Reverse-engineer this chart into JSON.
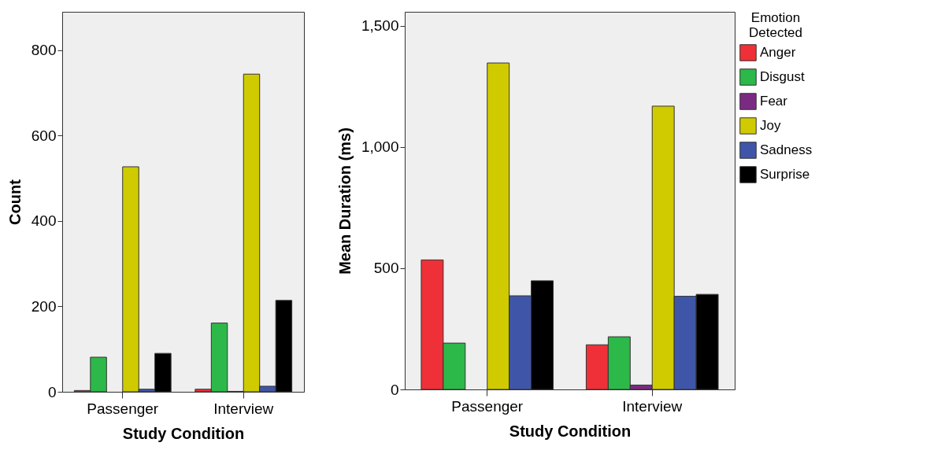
{
  "chart_data": [
    {
      "type": "bar",
      "xlabel": "Study Condition",
      "ylabel": "Count",
      "categories": [
        "Passenger",
        "Interview"
      ],
      "ylim": [
        0,
        890
      ],
      "yticks": [
        0,
        200,
        400,
        600,
        800
      ],
      "grid": false,
      "legend": false,
      "series": [
        {
          "color": "#ef3038",
          "values": [
            3,
            6
          ]
        },
        {
          "color": "#2db84a",
          "values": [
            81,
            161
          ]
        },
        {
          "color": "#7b2a84",
          "values": [
            null,
            1
          ]
        },
        {
          "color": "#cfcb00",
          "values": [
            527,
            744
          ]
        },
        {
          "color": "#3f56a8",
          "values": [
            6,
            13
          ]
        },
        {
          "color": "#000000",
          "values": [
            90,
            214
          ]
        }
      ]
    },
    {
      "type": "bar",
      "xlabel": "Study Condition",
      "ylabel": "Mean Duration (ms)",
      "legend_title": "Emotion Detected",
      "legend": "top right",
      "categories": [
        "Passenger",
        "Interview"
      ],
      "ylim": [
        0,
        1557
      ],
      "yticks": [
        0,
        {
          "value": 500,
          "label": "500"
        },
        {
          "value": 1000,
          "label": "1,000"
        },
        {
          "value": 1500,
          "label": "1,500"
        }
      ],
      "grid": false,
      "series": [
        {
          "name": "Anger",
          "color": "#ef3038",
          "values": [
            534,
            184
          ]
        },
        {
          "name": "Disgust",
          "color": "#2db84a",
          "values": [
            191,
            217
          ]
        },
        {
          "name": "Fear",
          "color": "#7b2a84",
          "values": [
            null,
            18
          ]
        },
        {
          "name": "Joy",
          "color": "#cfcb00",
          "values": [
            1346,
            1168
          ]
        },
        {
          "name": "Sadness",
          "color": "#3f56a8",
          "values": [
            386,
            384
          ]
        },
        {
          "name": "Surprise",
          "color": "#000000",
          "values": [
            448,
            392
          ]
        }
      ]
    }
  ]
}
